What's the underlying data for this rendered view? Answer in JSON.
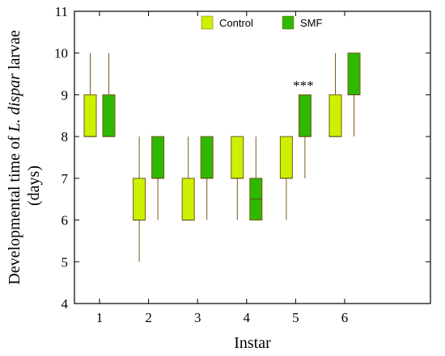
{
  "chart_data": {
    "type": "box",
    "title": "",
    "xlabel": "Instar",
    "ylabel_parts": [
      {
        "text": "Developmental time of ",
        "italic": false
      },
      {
        "text": "L. dispar",
        "italic": true
      },
      {
        "text": " larvae",
        "italic": false
      }
    ],
    "ylabel_line2": "(days)",
    "categories": [
      "1",
      "2",
      "3",
      "4",
      "5",
      "6"
    ],
    "ylim": [
      4,
      11
    ],
    "yticks": [
      "4",
      "5",
      "6",
      "7",
      "8",
      "9",
      "10",
      "11"
    ],
    "grid": false,
    "legend_position": "top-center",
    "series": [
      {
        "name": "Control",
        "color": "#ccf000",
        "edge": "#7a5a1a",
        "boxes": [
          {
            "min": 8,
            "q1": 8,
            "median": 8,
            "q3": 9,
            "max": 10
          },
          {
            "min": 5,
            "q1": 6,
            "median": 6,
            "q3": 7,
            "max": 8
          },
          {
            "min": 6,
            "q1": 6,
            "median": 6,
            "q3": 7,
            "max": 8
          },
          {
            "min": 6,
            "q1": 7,
            "median": 7,
            "q3": 8,
            "max": 8
          },
          {
            "min": 6,
            "q1": 7,
            "median": 7,
            "q3": 8,
            "max": 8
          },
          {
            "min": 8,
            "q1": 8,
            "median": 8,
            "q3": 9,
            "max": 10
          }
        ]
      },
      {
        "name": "SMF",
        "color": "#2eb800",
        "edge": "#7a5a1a",
        "boxes": [
          {
            "min": 8,
            "q1": 8,
            "median": 8,
            "q3": 9,
            "max": 10
          },
          {
            "min": 6,
            "q1": 7,
            "median": 7,
            "q3": 8,
            "max": 8
          },
          {
            "min": 6,
            "q1": 7,
            "median": 7,
            "q3": 8,
            "max": 8
          },
          {
            "min": 6,
            "q1": 6,
            "median": 6.5,
            "q3": 7,
            "max": 8
          },
          {
            "min": 7,
            "q1": 8,
            "median": 8,
            "q3": 9,
            "max": 9
          },
          {
            "min": 8,
            "q1": 9,
            "median": 9,
            "q3": 10,
            "max": 10
          }
        ]
      }
    ],
    "annotations": [
      {
        "category": "5",
        "series": "SMF",
        "text": "***"
      }
    ]
  }
}
